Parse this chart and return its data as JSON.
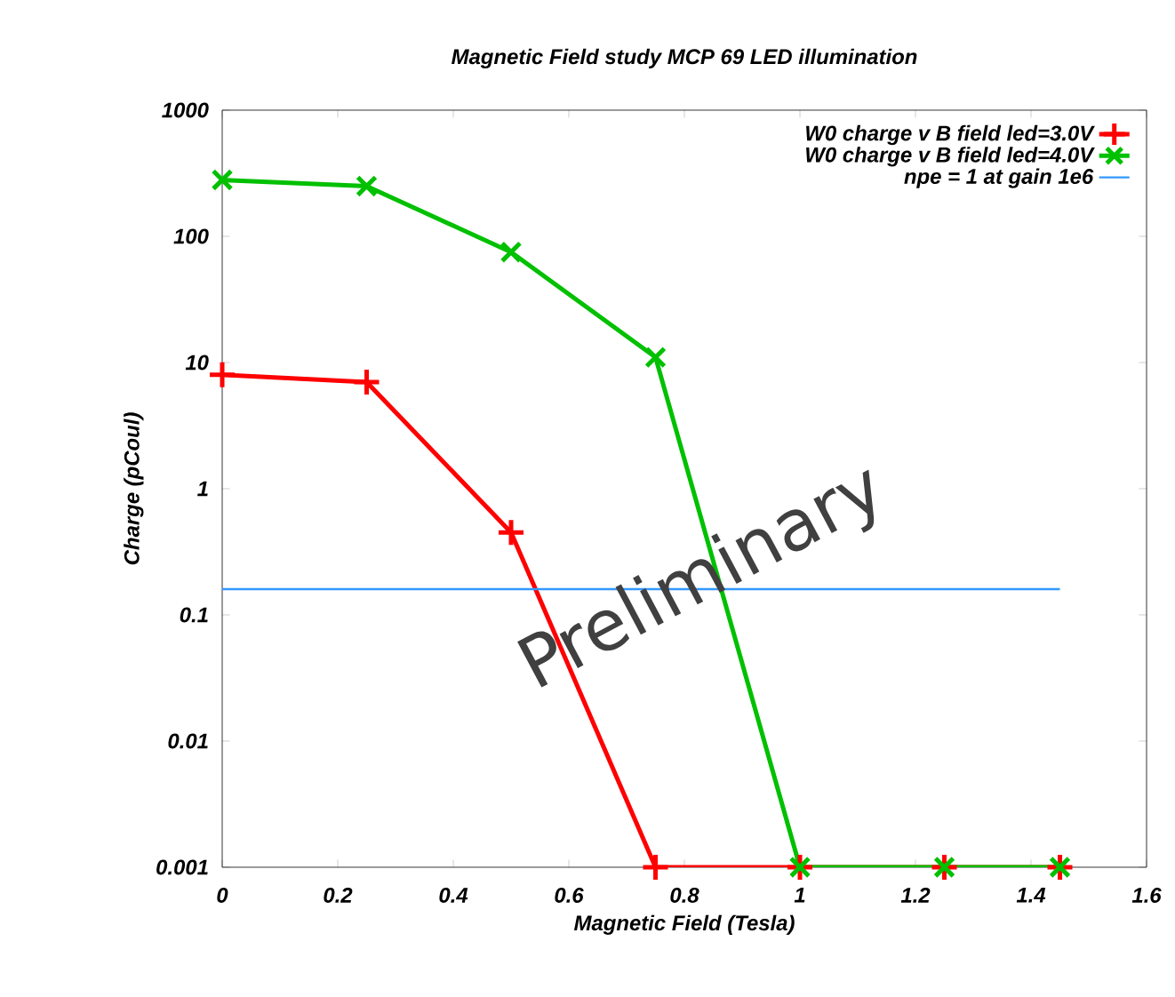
{
  "chart_data": {
    "type": "line",
    "title": "Magnetic Field study MCP 69 LED illumination",
    "xlabel": "Magnetic Field (Tesla)",
    "ylabel": "Charge (pCoul)",
    "series": [
      {
        "name": "W0 charge v B field led=3.0V",
        "color": "#ff0000",
        "marker": "plus",
        "x": [
          0,
          0.25,
          0.5,
          0.75,
          1,
          1.25,
          1.45
        ],
        "values": [
          8,
          7,
          0.45,
          0.001,
          0.001,
          0.001,
          0.001
        ]
      },
      {
        "name": "W0 charge  v B field led=4.0V",
        "color": "#00c000",
        "marker": "cross",
        "x": [
          0,
          0.25,
          0.5,
          0.75,
          1,
          1.25,
          1.45
        ],
        "values": [
          280,
          250,
          75,
          11,
          0.001,
          0.001,
          0.001
        ]
      },
      {
        "name": "npe = 1 at gain 1e6",
        "color": "#3399ff",
        "marker": "none",
        "x": [
          0,
          1.45
        ],
        "values": [
          0.16,
          0.16
        ]
      }
    ],
    "xlim": [
      0,
      1.6
    ],
    "xticks": [
      0,
      0.2,
      0.4,
      0.6,
      0.8,
      1,
      1.2,
      1.4,
      1.6
    ],
    "ylim": [
      0.001,
      1000
    ],
    "yticks": [
      0.001,
      0.01,
      0.1,
      1,
      10,
      100,
      1000
    ],
    "log": "y",
    "grid": false,
    "legend": "top right",
    "annotations": [
      "Preliminary"
    ]
  }
}
